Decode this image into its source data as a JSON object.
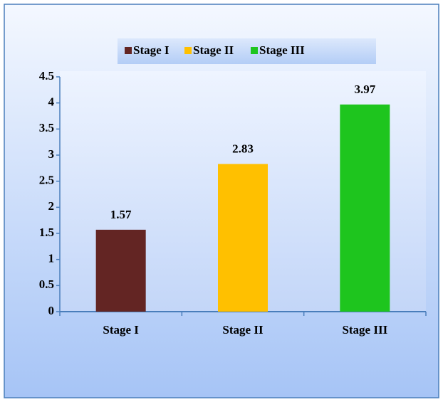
{
  "chart_data": {
    "type": "bar",
    "categories": [
      "Stage I",
      "Stage II",
      "Stage III"
    ],
    "values": [
      1.57,
      2.83,
      3.97
    ],
    "colors": [
      "#632523",
      "#ffc000",
      "#1ec51e"
    ],
    "ylim": [
      0,
      4.5
    ],
    "yticks": [
      0,
      0.5,
      1,
      1.5,
      2,
      2.5,
      3,
      3.5,
      4,
      4.5
    ],
    "grid": false,
    "legend": "top"
  }
}
